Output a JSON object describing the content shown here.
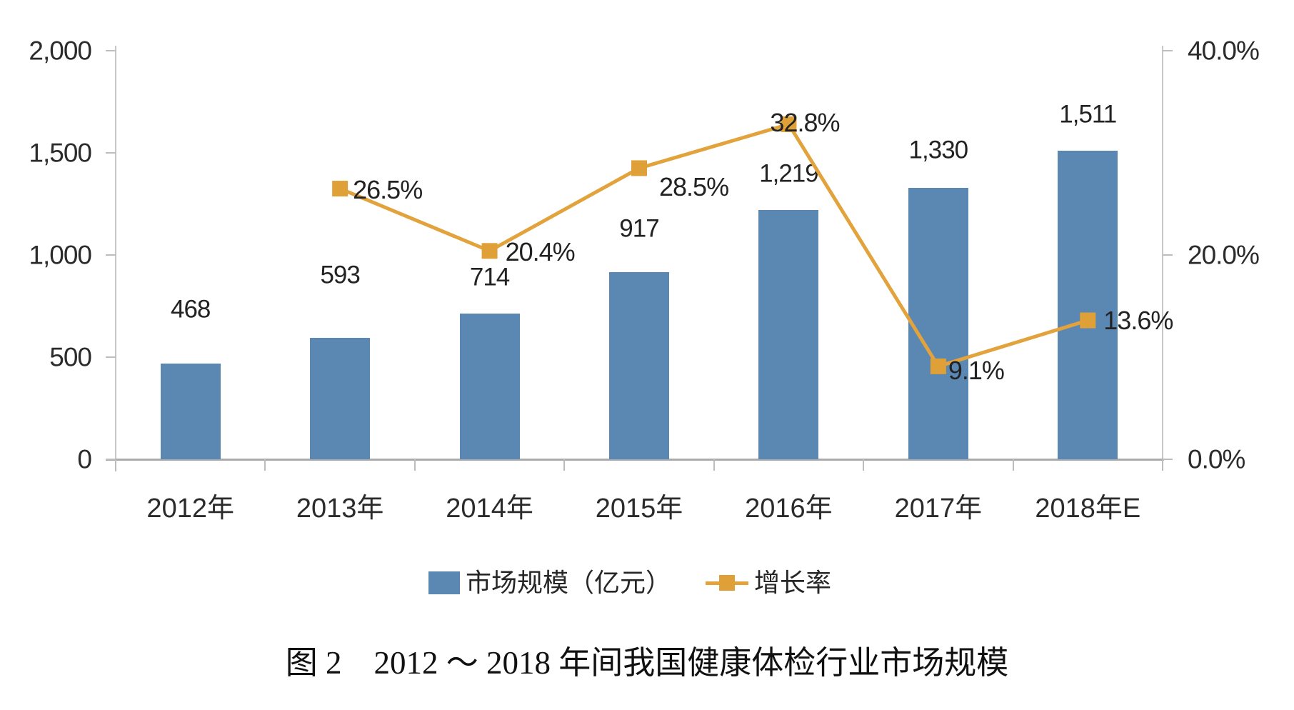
{
  "chart_data": {
    "type": "bar+line",
    "title": "",
    "categories": [
      "2012年",
      "2013年",
      "2014年",
      "2015年",
      "2016年",
      "2017年",
      "2018年E"
    ],
    "series": [
      {
        "name": "市场规模（亿元）",
        "type": "bar",
        "axis": "left",
        "values": [
          468,
          593,
          714,
          917,
          1219,
          1330,
          1511
        ],
        "labels": [
          "468",
          "593",
          "714",
          "917",
          "1,219",
          "1,330",
          "1,511"
        ]
      },
      {
        "name": "增长率",
        "type": "line",
        "axis": "right",
        "values": [
          null,
          26.5,
          20.4,
          28.5,
          32.8,
          9.1,
          13.6
        ],
        "labels": [
          null,
          "26.5%",
          "20.4%",
          "28.5%",
          "32.8%",
          "9.1%",
          "13.6%"
        ]
      }
    ],
    "left_axis": {
      "range": [
        0,
        2000
      ],
      "ticks": [
        0,
        500,
        1000,
        1500,
        2000
      ],
      "tick_labels": [
        "0",
        "500",
        "1,000",
        "1,500",
        "2,000"
      ]
    },
    "right_axis": {
      "range": [
        0,
        40
      ],
      "ticks": [
        0,
        20,
        40
      ],
      "tick_labels": [
        "0.0%",
        "20.0%",
        "40.0%"
      ]
    },
    "grid": false,
    "legend_position": "bottom"
  },
  "legend": {
    "items": [
      {
        "label": "市场规模（亿元）",
        "swatch": "bar"
      },
      {
        "label": "增长率",
        "swatch": "line-marker"
      }
    ]
  },
  "caption": "图 2　2012 ～ 2018 年间我国健康体检行业市场规模",
  "colors": {
    "bar": "#5b87b3",
    "line": "#e2a33d",
    "marker": "#e0a038",
    "axis_line": "#c7c7c7",
    "baseline": "#ababab",
    "text": "#262626"
  }
}
